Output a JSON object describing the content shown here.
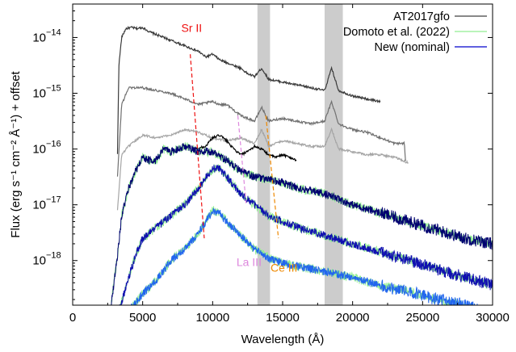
{
  "chart_data": {
    "type": "line",
    "title": "",
    "xlabel": "Wavelength (Å)",
    "ylabel": "Flux (erg s⁻¹ cm⁻² Å⁻¹) + offset",
    "xlim": [
      0,
      30000
    ],
    "ylim_log10": [
      -18.8,
      -13.4
    ],
    "log_y": true,
    "grid": false,
    "legend_position": "top-right",
    "x_ticks": [
      0,
      5000,
      10000,
      15000,
      20000,
      25000,
      30000
    ],
    "x_tick_labels": [
      "0",
      "5000",
      "10000",
      "15000",
      "20000",
      "25000",
      "30000"
    ],
    "y_ticks_log10": [
      -18,
      -17,
      -16,
      -15,
      -14
    ],
    "y_tick_labels": [
      "10",
      "10",
      "10",
      "10",
      "10"
    ],
    "y_tick_exponents": [
      "−18",
      "−17",
      "−16",
      "−15",
      "−14"
    ],
    "legend": [
      {
        "label": "AT2017gfo",
        "color": "#404040"
      },
      {
        "label": "Domoto et al. (2022)",
        "color": "#90ee90"
      },
      {
        "label": "New (nominal)",
        "color": "#0000cc"
      }
    ],
    "telluric_bands": [
      [
        13200,
        14100
      ],
      [
        18000,
        19300
      ]
    ],
    "series": [
      {
        "group": "observed",
        "color": "#3a3a3a",
        "x": [
          3200,
          3300,
          3500,
          3800,
          4200,
          4600,
          5000,
          5500,
          6000,
          6500,
          7000,
          7500,
          8000,
          8500,
          9000,
          9500,
          10000,
          10500,
          11000,
          12000,
          12500,
          13000,
          13500,
          14000,
          15000,
          16000,
          17000,
          18000,
          18500,
          19000,
          20000,
          21000,
          22000
        ],
        "y": [
          -16.1,
          -14.5,
          -14.0,
          -13.84,
          -13.82,
          -13.84,
          -13.82,
          -13.9,
          -13.95,
          -14.0,
          -14.05,
          -14.1,
          -14.15,
          -14.2,
          -14.25,
          -14.35,
          -14.3,
          -14.4,
          -14.45,
          -14.55,
          -14.65,
          -14.7,
          -14.55,
          -14.75,
          -14.8,
          -14.85,
          -14.9,
          -14.95,
          -14.55,
          -14.95,
          -15.05,
          -15.1,
          -15.15
        ]
      },
      {
        "group": "observed",
        "color": "#707070",
        "x": [
          3200,
          3500,
          4000,
          5000,
          6000,
          7000,
          8000,
          9000,
          10000,
          10500,
          11000,
          12000,
          13000,
          13500,
          14000,
          15000,
          16000,
          17000,
          18000,
          18500,
          19000,
          20000,
          21000,
          22000,
          23000,
          23700,
          23800
        ],
        "y": [
          -16.5,
          -15.2,
          -14.9,
          -14.9,
          -14.95,
          -15.0,
          -15.1,
          -15.2,
          -15.15,
          -15.2,
          -15.2,
          -15.4,
          -15.5,
          -15.25,
          -15.5,
          -15.45,
          -15.5,
          -15.55,
          -15.5,
          -15.15,
          -15.55,
          -15.65,
          -15.7,
          -15.8,
          -15.9,
          -15.9,
          -16.3
        ]
      },
      {
        "group": "observed",
        "color": "#a5a5a5",
        "x": [
          3200,
          3500,
          4000,
          4500,
          5000,
          6000,
          7000,
          8000,
          9000,
          10000,
          11000,
          12000,
          13000,
          13500,
          14000,
          15000,
          16000,
          17000,
          18000,
          18500,
          19000,
          20000,
          21000,
          22000,
          23000,
          24000
        ],
        "y": [
          -17.1,
          -16.1,
          -15.95,
          -15.85,
          -15.75,
          -15.8,
          -15.75,
          -15.65,
          -15.7,
          -15.8,
          -15.85,
          -15.8,
          -15.9,
          -15.65,
          -15.95,
          -15.85,
          -15.9,
          -15.95,
          -15.95,
          -15.65,
          -16.0,
          -16.05,
          -16.1,
          -16.1,
          -16.15,
          -16.25
        ]
      },
      {
        "group": "observed",
        "color": "#000000",
        "x": [
          8800,
          9500,
          10000,
          10500,
          11000,
          11500,
          12000,
          12500,
          13000,
          13500,
          14000,
          14500,
          15000,
          15500,
          16000
        ],
        "y": [
          -16.0,
          -15.95,
          -15.8,
          -15.75,
          -15.85,
          -16.0,
          -16.1,
          -16.05,
          -15.95,
          -16.0,
          -16.1,
          -16.15,
          -16.1,
          -16.15,
          -16.2
        ]
      },
      {
        "group": "model",
        "color": "#000070",
        "x": [
          2700,
          3200,
          3500,
          4000,
          4500,
          5000,
          5500,
          6000,
          6500,
          7000,
          8000,
          9000,
          10000,
          11000,
          12000,
          13000,
          14000,
          15000,
          16000,
          18000,
          20000,
          22000,
          24000,
          26000,
          28000,
          30000
        ],
        "y": [
          -18.9,
          -17.9,
          -17.2,
          -16.7,
          -16.4,
          -16.15,
          -16.2,
          -16.2,
          -16.0,
          -16.05,
          -15.95,
          -16.05,
          -16.05,
          -16.2,
          -16.4,
          -16.5,
          -16.55,
          -16.6,
          -16.7,
          -16.8,
          -17.0,
          -17.15,
          -17.3,
          -17.45,
          -17.6,
          -17.7
        ]
      },
      {
        "group": "model",
        "color": "#1010b0",
        "x": [
          3300,
          4000,
          4500,
          5000,
          6000,
          7000,
          8000,
          9000,
          10000,
          10500,
          11000,
          12000,
          13000,
          14000,
          15000,
          16000,
          18000,
          20000,
          22000,
          24000,
          26000,
          28000,
          30000
        ],
        "y": [
          -18.9,
          -18.3,
          -17.9,
          -17.6,
          -17.4,
          -17.2,
          -17.0,
          -16.7,
          -16.35,
          -16.35,
          -16.5,
          -16.8,
          -17.0,
          -17.2,
          -17.3,
          -17.4,
          -17.55,
          -17.7,
          -17.85,
          -18.0,
          -18.15,
          -18.3,
          -18.45
        ]
      },
      {
        "group": "model",
        "color": "#2266ee",
        "x": [
          4000,
          5000,
          6000,
          7000,
          8000,
          9000,
          10000,
          10500,
          11000,
          12000,
          13000,
          14000,
          15000,
          16000,
          18000,
          20000,
          22000,
          24000,
          26000,
          28000,
          30000
        ],
        "y": [
          -18.9,
          -18.6,
          -18.35,
          -18.0,
          -17.8,
          -17.5,
          -17.1,
          -17.15,
          -17.3,
          -17.55,
          -17.8,
          -17.95,
          -18.05,
          -18.1,
          -18.2,
          -18.3,
          -18.45,
          -18.55,
          -18.7,
          -18.8,
          -18.95
        ]
      }
    ],
    "annotations": [
      {
        "label": "Sr II",
        "color": "#ee1111",
        "label_x": 8500,
        "label_y": -13.9,
        "line_x": [
          8400,
          9400
        ],
        "line_y": [
          -14.3,
          -17.6
        ]
      },
      {
        "label": "La III",
        "color": "#dd88dd",
        "label_x": 12600,
        "label_y": -18.1,
        "line_x": [
          11800,
          12400
        ],
        "line_y": [
          -15.4,
          -17.0
        ]
      },
      {
        "label": "Ce III",
        "color": "#ee8800",
        "label_x": 15100,
        "label_y": -18.2,
        "line_x": [
          13800,
          14700
        ],
        "line_y": [
          -15.4,
          -17.6
        ]
      }
    ]
  }
}
